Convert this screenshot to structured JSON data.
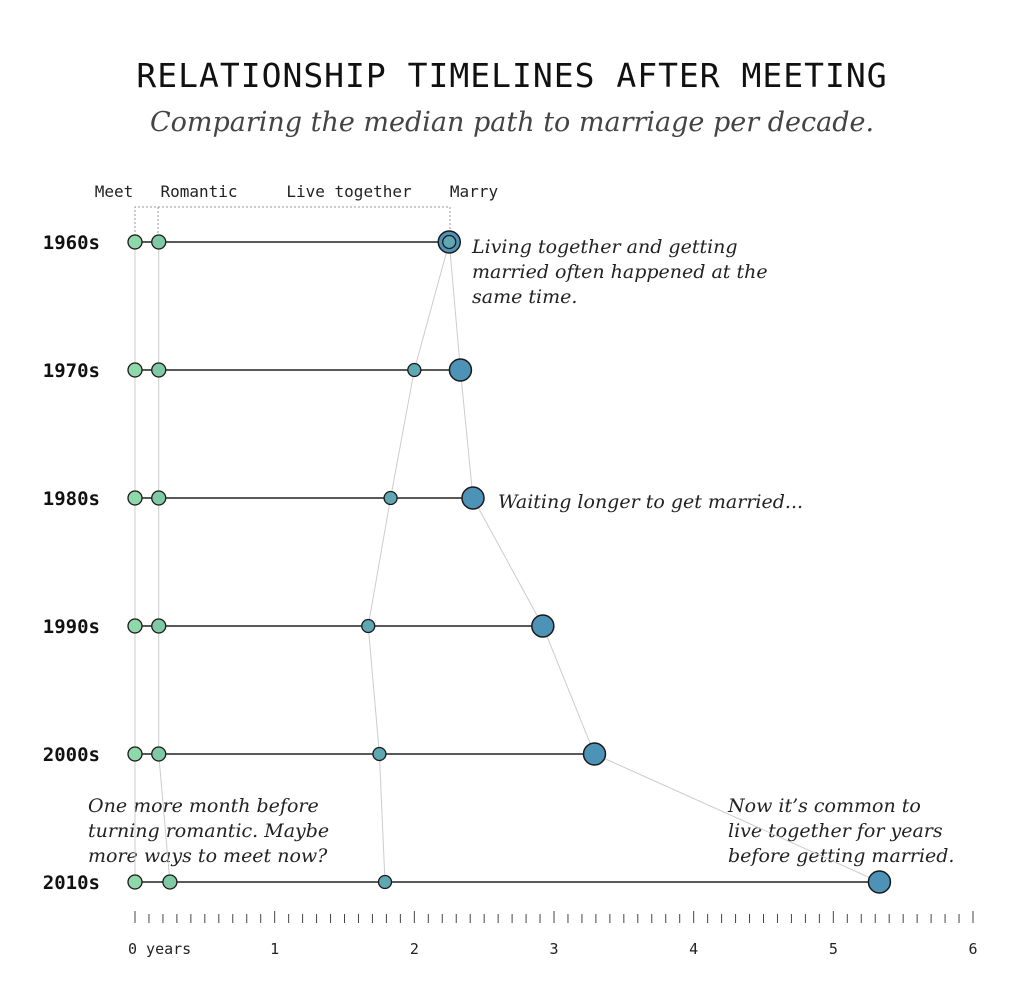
{
  "title": "RELATIONSHIP TIMELINES AFTER MEETING",
  "subtitle": "Comparing the median path to marriage per decade.",
  "stage_labels": {
    "meet": "Meet",
    "romantic": "Romantic",
    "live": "Live together",
    "marry": "Marry"
  },
  "annotations": {
    "a1960": [
      "Living together and getting",
      "married often happened at the",
      "same time."
    ],
    "a1980": [
      "Waiting longer to get married..."
    ],
    "a2010_left": [
      "One more month before",
      "turning romantic. Maybe",
      "more ways to meet now?"
    ],
    "a2010_right": [
      "Now it’s common to",
      "live together for years",
      "before getting married."
    ]
  },
  "colors": {
    "meet": "#8fd9a8",
    "romantic": "#7fc9a5",
    "live": "#5fa7b3",
    "marry": "#4d93b8",
    "line": "#222222",
    "connector": "#cccccc"
  },
  "chart_data": {
    "type": "dot-timeline",
    "xlabel": "years",
    "x_range": [
      0,
      6
    ],
    "x_ticks": [
      {
        "value": 0,
        "label": "0 years"
      },
      {
        "value": 1,
        "label": "1"
      },
      {
        "value": 2,
        "label": "2"
      },
      {
        "value": 3,
        "label": "3"
      },
      {
        "value": 4,
        "label": "4"
      },
      {
        "value": 5,
        "label": "5"
      },
      {
        "value": 6,
        "label": "6"
      }
    ],
    "minor_tick_step": 0.1,
    "series": [
      {
        "decade": "1960s",
        "meet": 0,
        "romantic": 0.17,
        "live": 2.25,
        "marry": 2.25
      },
      {
        "decade": "1970s",
        "meet": 0,
        "romantic": 0.17,
        "live": 2.0,
        "marry": 2.33
      },
      {
        "decade": "1980s",
        "meet": 0,
        "romantic": 0.17,
        "live": 1.83,
        "marry": 2.42
      },
      {
        "decade": "1990s",
        "meet": 0,
        "romantic": 0.17,
        "live": 1.67,
        "marry": 2.92
      },
      {
        "decade": "2000s",
        "meet": 0,
        "romantic": 0.17,
        "live": 1.75,
        "marry": 3.29
      },
      {
        "decade": "2010s",
        "meet": 0,
        "romantic": 0.25,
        "live": 1.79,
        "marry": 5.33
      }
    ]
  }
}
